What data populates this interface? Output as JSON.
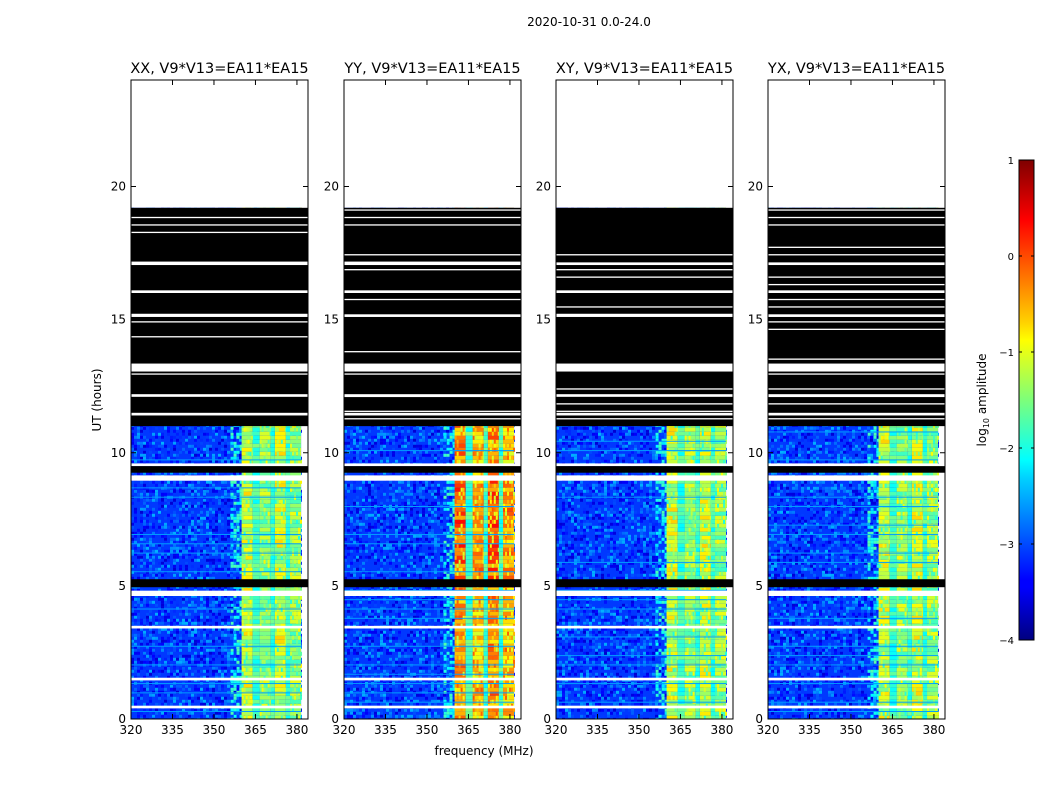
{
  "suptitle": "2020-10-31 0.0-24.0",
  "chart_data": {
    "type": "heatmap",
    "panels": [
      {
        "title": "XX, V9*V13=EA11*EA15",
        "band": "mid"
      },
      {
        "title": "YY, V9*V13=EA11*EA15",
        "band": "high"
      },
      {
        "title": "XY, V9*V13=EA11*EA15",
        "band": "mid"
      },
      {
        "title": "YX, V9*V13=EA11*EA15",
        "band": "mid"
      }
    ],
    "xlabel": "frequency (MHz)",
    "ylabel": "UT (hours)",
    "xlim": [
      320,
      384
    ],
    "ylim": [
      0,
      24
    ],
    "xticks": [
      320,
      335,
      350,
      365,
      380
    ],
    "yticks": [
      0,
      5,
      10,
      15,
      20
    ],
    "colorbar": {
      "label": "log10 amplitude",
      "label_base": "log",
      "label_sub": "10",
      "label_rest": " amplitude",
      "range": [
        -4,
        1
      ],
      "ticks": [
        1,
        0,
        -1,
        -2,
        -3,
        -4
      ],
      "tick_labels": [
        "1",
        "0",
        "−1",
        "−2",
        "−3",
        "−4"
      ],
      "colormap": "jet"
    },
    "data_extent_hours": [
      0,
      19.2
    ],
    "band_edge_mhz": 360,
    "band_channels_mhz": [
      [
        360,
        364
      ],
      [
        366.5,
        370.5
      ],
      [
        372,
        376
      ],
      [
        377.5,
        381.5
      ]
    ],
    "data_end_mhz": 381.5,
    "flagged_hours_black": [
      [
        4.95,
        5.25
      ],
      [
        9.25,
        9.5
      ],
      [
        11.0,
        19.2
      ]
    ],
    "gap_hours_white": [
      [
        0.4,
        0.5
      ],
      [
        1.45,
        1.55
      ],
      [
        3.4,
        3.5
      ],
      [
        4.62,
        4.82
      ],
      [
        8.95,
        9.15
      ],
      [
        9.5,
        9.6
      ],
      [
        13.05,
        13.35
      ],
      [
        17.05,
        17.15
      ],
      [
        16.0,
        16.1
      ],
      [
        15.1,
        15.2
      ],
      [
        12.1,
        12.2
      ],
      [
        11.4,
        11.5
      ]
    ]
  }
}
